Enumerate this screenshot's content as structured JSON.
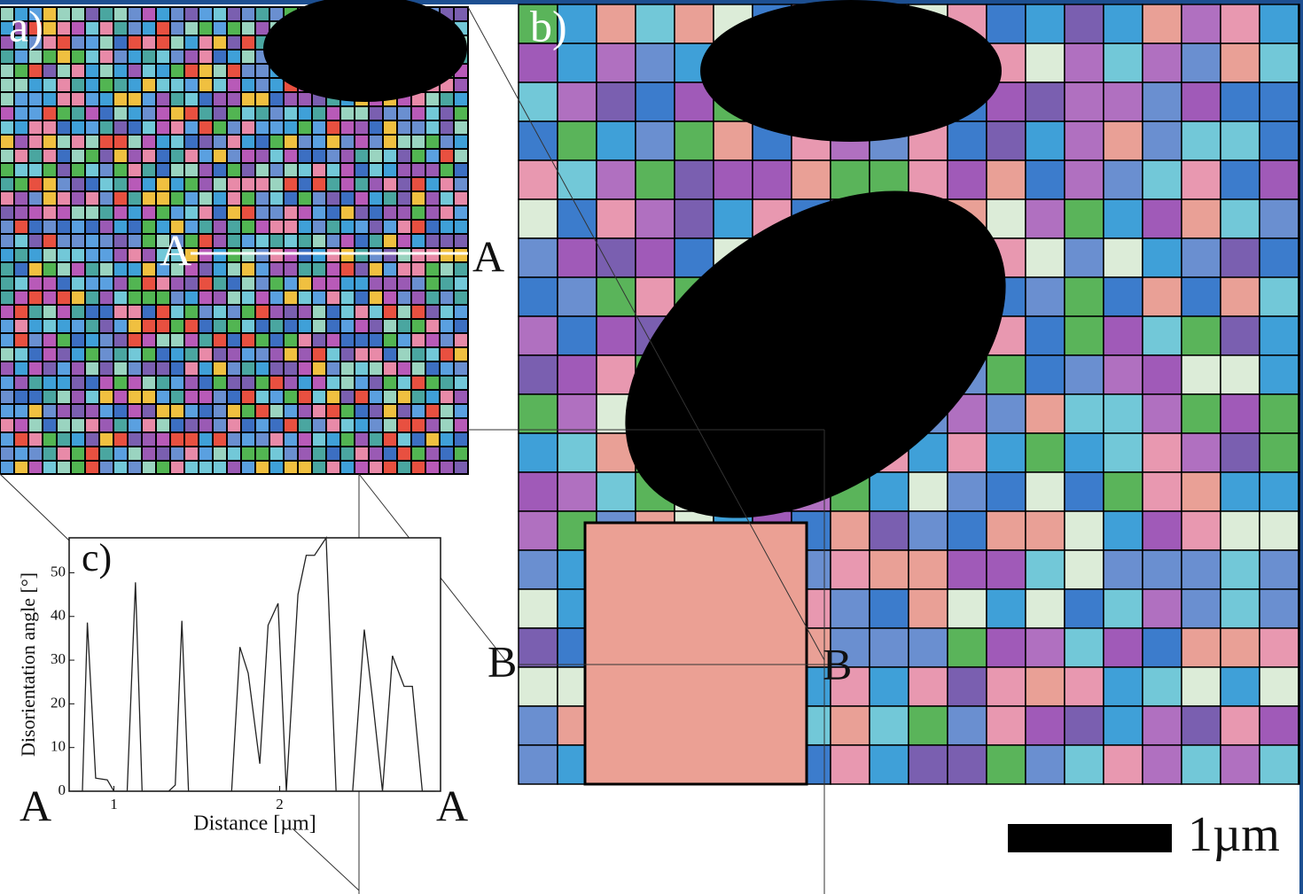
{
  "chart_data": {
    "type": "line",
    "title": "c)",
    "x_label": "Distance [µm]",
    "y_label": "Disorientation angle [°]",
    "x": [
      0.75,
      0.81,
      0.84,
      0.89,
      0.96,
      1.0,
      1.08,
      1.13,
      1.17,
      1.33,
      1.37,
      1.41,
      1.45,
      1.71,
      1.76,
      1.81,
      1.88,
      1.93,
      1.99,
      2.04,
      2.11,
      2.16,
      2.21,
      2.28,
      2.34,
      2.44,
      2.51,
      2.56,
      2.62,
      2.68,
      2.75,
      2.8,
      2.86,
      2.94
    ],
    "values": [
      0,
      0,
      38.6,
      3,
      2.6,
      0,
      0,
      47.8,
      0,
      0,
      1.4,
      39,
      0,
      0,
      33,
      27,
      6.3,
      38,
      43,
      0,
      45,
      54,
      54,
      58,
      0,
      0,
      37,
      21,
      0,
      31,
      24,
      24,
      0,
      0
    ],
    "color": "#222222",
    "xlim": [
      0.73,
      2.97
    ],
    "xticks": [
      1,
      2
    ],
    "ylim": [
      0,
      58
    ],
    "yticks": [
      0,
      10,
      20,
      30,
      40,
      50
    ]
  },
  "labels": {
    "panel_a": "a)",
    "panel_b": "b)",
    "section_a_start": "A",
    "section_a_end": "A",
    "section_b_start": "B",
    "section_b_end": "B",
    "profile_start": "A",
    "profile_end": "A",
    "scale_bar": "1µm"
  }
}
